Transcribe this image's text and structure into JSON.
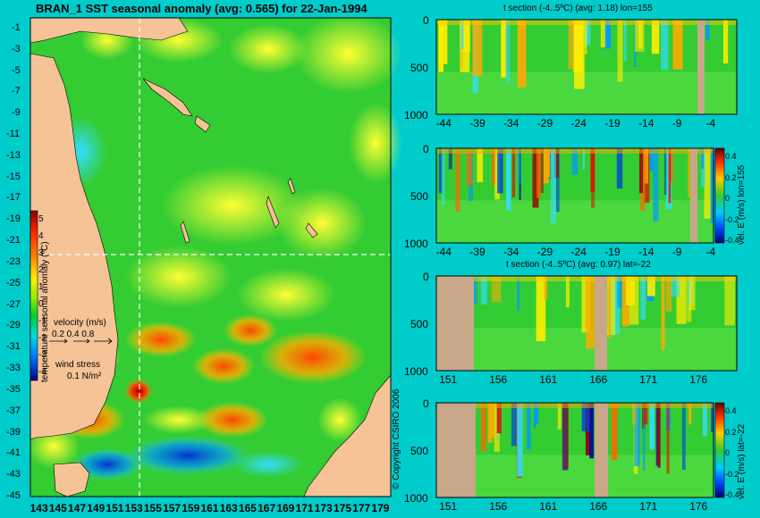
{
  "chart_data": [
    {
      "type": "heatmap",
      "title": "BRAN_1 SST seasonal anomaly (avg: 0.565) for 22-Jan-1994",
      "x_ticks": [
        "143",
        "145",
        "147",
        "149",
        "151",
        "153",
        "155",
        "157",
        "159",
        "161",
        "163",
        "165",
        "167",
        "169",
        "171",
        "173",
        "175",
        "177",
        "179"
      ],
      "y_ticks": [
        "-1",
        "-3",
        "-5",
        "-7",
        "-9",
        "-11",
        "-13",
        "-15",
        "-17",
        "-19",
        "-21",
        "-23",
        "-25",
        "-27",
        "-29",
        "-31",
        "-33",
        "-35",
        "-37",
        "-39",
        "-41",
        "-43",
        "-45"
      ],
      "xlim": [
        142,
        180
      ],
      "ylim": [
        -45,
        0
      ],
      "crosshair": {
        "lon": 155,
        "lat": -22
      },
      "colorbar": {
        "label": "temperature seasonal anomaly (ºC)",
        "ticks": [
          "5",
          "4",
          "3",
          "2",
          "1",
          "0",
          "-1",
          "-2",
          "-3",
          "-4"
        ],
        "range": [
          -4,
          5
        ]
      },
      "velocity_legend": {
        "title": "velocity (m/s)",
        "values": "0.2 0.4 0.8"
      },
      "wind_legend": {
        "title": "wind stress",
        "value": "0.1 N/m²"
      }
    },
    {
      "type": "heatmap",
      "title": "t section (-4..5ºC) (avg: 1.18) lon=155",
      "x_ticks": [
        "-44",
        "-39",
        "-34",
        "-29",
        "-24",
        "-19",
        "-14",
        "-9",
        "-4"
      ],
      "y_ticks": [
        "0",
        "500",
        "1000"
      ],
      "xlim": [
        -45,
        -0.5
      ],
      "ylim": [
        1000,
        0
      ]
    },
    {
      "type": "heatmap",
      "title": "",
      "x_ticks": [
        "-44",
        "-39",
        "-34",
        "-29",
        "-24",
        "-19",
        "-14",
        "-9",
        "-4"
      ],
      "y_ticks": [
        "0",
        "500",
        "1000"
      ],
      "colorbar": {
        "label": "vel. E (m/s) lon=155",
        "ticks": [
          "0.4",
          "0.2",
          "0",
          "-0.2",
          "-0.4"
        ]
      }
    },
    {
      "type": "heatmap",
      "title": "t section (-4..5ºC) (avg: 0.97) lat=-22",
      "x_ticks": [
        "151",
        "156",
        "161",
        "166",
        "171",
        "176"
      ],
      "y_ticks": [
        "0",
        "500",
        "1000"
      ],
      "xlim": [
        150,
        180
      ],
      "ylim": [
        1000,
        0
      ]
    },
    {
      "type": "heatmap",
      "title": "",
      "x_ticks": [
        "151",
        "156",
        "161",
        "166",
        "171",
        "176"
      ],
      "y_ticks": [
        "0",
        "500",
        "1000"
      ],
      "colorbar": {
        "label": "vel. E (m/s) lat=-22",
        "ticks": [
          "0.4",
          "0.2",
          "0",
          "-0.2",
          "-0.4"
        ]
      }
    }
  ],
  "copyright": "© Copyright CSIRO 2006",
  "colors": {
    "background": "#00cccc",
    "land": "#f5c396",
    "section_land": "#c8a888"
  }
}
